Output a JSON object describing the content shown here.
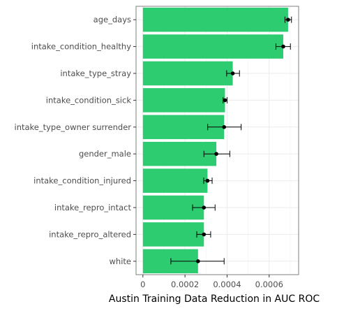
{
  "chart_data": {
    "type": "bar",
    "orientation": "horizontal",
    "error_bars": true,
    "categories": [
      "white",
      "intake_repro_altered",
      "intake_repro_intact",
      "intake_condition_injured",
      "gender_male",
      "intake_type_owner surrender",
      "intake_condition_sick",
      "intake_type_stray",
      "intake_condition_healthy",
      "age_days"
    ],
    "values": [
      0.000262,
      0.00029,
      0.00029,
      0.000307,
      0.000349,
      0.000386,
      0.00039,
      0.000427,
      0.000667,
      0.00069
    ],
    "error_low": [
      0.000133,
      0.000256,
      0.000236,
      0.000289,
      0.00029,
      0.000308,
      0.000381,
      0.000398,
      0.000632,
      0.000675
    ],
    "error_high": [
      0.000386,
      0.000322,
      0.000343,
      0.000329,
      0.000413,
      0.000467,
      0.0004,
      0.000459,
      0.000701,
      0.000706
    ],
    "xlabel": "Austin Training Data Reduction in AUC ROC",
    "ylabel": "",
    "xlim": [
      -3.25e-05,
      0.00074
    ],
    "xticks": [
      0,
      0.0002,
      0.0004,
      0.0006
    ],
    "xtick_labels": [
      "0",
      "0.0002",
      "0.0004",
      "0.0006"
    ],
    "grid": true,
    "bar_color": "#2ecc71",
    "point_color": "#000000"
  }
}
